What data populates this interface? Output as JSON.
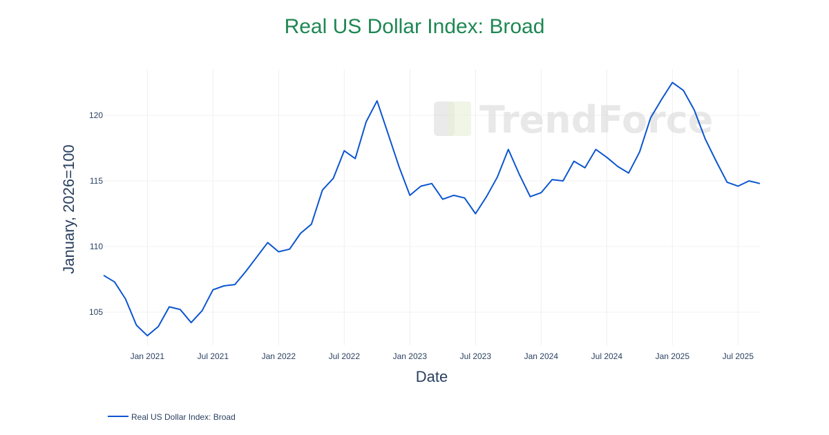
{
  "title": "Real US Dollar Index: Broad",
  "watermark": "TrendForce",
  "colors": {
    "title": "#1e8752",
    "line": "#0b55d0",
    "text": "#2a3f5f",
    "grid": "#f0f0f0"
  },
  "legend": {
    "label": "Real US Dollar Index: Broad"
  },
  "chart_data": {
    "type": "line",
    "title": "Real US Dollar Index: Broad",
    "xlabel": "Date",
    "ylabel": "January, 2026=100",
    "ylim": [
      102.5,
      123.5
    ],
    "yticks": [
      105,
      110,
      115,
      120
    ],
    "xticks": [
      "Jan 2021",
      "Jul 2021",
      "Jan 2022",
      "Jul 2022",
      "Jan 2023",
      "Jul 2023",
      "Jan 2024",
      "Jul 2024",
      "Jan 2025",
      "Jul 2025"
    ],
    "grid": true,
    "legend_position": "bottom-left",
    "x_start": "2020-09",
    "x_end": "2025-09",
    "series": [
      {
        "name": "Real US Dollar Index: Broad",
        "x": [
          "2020-09",
          "2020-10",
          "2020-11",
          "2020-12",
          "2021-01",
          "2021-02",
          "2021-03",
          "2021-04",
          "2021-05",
          "2021-06",
          "2021-07",
          "2021-08",
          "2021-09",
          "2021-10",
          "2021-11",
          "2021-12",
          "2022-01",
          "2022-02",
          "2022-03",
          "2022-04",
          "2022-05",
          "2022-06",
          "2022-07",
          "2022-08",
          "2022-09",
          "2022-10",
          "2022-11",
          "2022-12",
          "2023-01",
          "2023-02",
          "2023-03",
          "2023-04",
          "2023-05",
          "2023-06",
          "2023-07",
          "2023-08",
          "2023-09",
          "2023-10",
          "2023-11",
          "2023-12",
          "2024-01",
          "2024-02",
          "2024-03",
          "2024-04",
          "2024-05",
          "2024-06",
          "2024-07",
          "2024-08",
          "2024-09",
          "2024-10",
          "2024-11",
          "2024-12",
          "2025-01",
          "2025-02",
          "2025-03",
          "2025-04",
          "2025-05",
          "2025-06",
          "2025-07",
          "2025-08",
          "2025-09"
        ],
        "values": [
          107.8,
          107.3,
          106.0,
          104.0,
          103.2,
          103.9,
          105.4,
          105.2,
          104.2,
          105.1,
          106.7,
          107.0,
          107.1,
          108.1,
          109.2,
          110.3,
          109.6,
          109.8,
          111.0,
          111.7,
          114.3,
          115.2,
          117.3,
          116.7,
          119.5,
          121.1,
          118.6,
          116.1,
          113.9,
          114.6,
          114.8,
          113.6,
          113.9,
          113.7,
          112.5,
          113.8,
          115.3,
          117.4,
          115.5,
          113.8,
          114.1,
          115.1,
          115.0,
          116.5,
          116.0,
          117.4,
          116.8,
          116.1,
          115.6,
          117.2,
          119.8,
          121.2,
          122.5,
          121.9,
          120.4,
          118.2,
          116.5,
          114.9,
          114.6,
          115.0,
          114.8
        ]
      }
    ]
  }
}
